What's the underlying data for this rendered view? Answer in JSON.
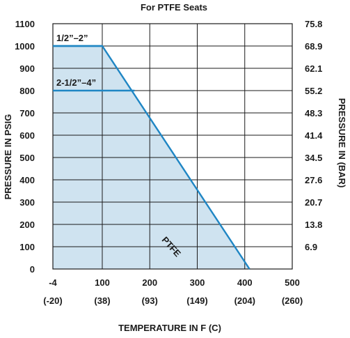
{
  "chart_data": {
    "type": "area",
    "title": "For PTFE Seats",
    "xlabel": "TEMPERATURE IN F (C)",
    "ylabel": "PRESSURE IN PSIG",
    "y2label": "PRESSURE IN (BAR)",
    "xlim": [
      -4,
      500
    ],
    "ylim": [
      0,
      1100
    ],
    "x_ticks": [
      {
        "value": -4,
        "label": "-4",
        "sublabel": "(-20)"
      },
      {
        "value": 100,
        "label": "100",
        "sublabel": "(38)"
      },
      {
        "value": 200,
        "label": "200",
        "sublabel": "(93)"
      },
      {
        "value": 300,
        "label": "300",
        "sublabel": "(149)"
      },
      {
        "value": 400,
        "label": "400",
        "sublabel": "(204)"
      },
      {
        "value": 500,
        "label": "500",
        "sublabel": "(260)"
      }
    ],
    "y_ticks": [
      {
        "value": 0,
        "label": "0",
        "right": ""
      },
      {
        "value": 100,
        "label": "100",
        "right": "6.9"
      },
      {
        "value": 200,
        "label": "200",
        "right": "13.8"
      },
      {
        "value": 300,
        "label": "300",
        "right": "20.7"
      },
      {
        "value": 400,
        "label": "400",
        "right": "27.6"
      },
      {
        "value": 500,
        "label": "500",
        "right": "34.5"
      },
      {
        "value": 600,
        "label": "600",
        "right": "41.4"
      },
      {
        "value": 700,
        "label": "700",
        "right": "48.3"
      },
      {
        "value": 800,
        "label": "800",
        "right": "55.2"
      },
      {
        "value": 900,
        "label": "900",
        "right": "62.1"
      },
      {
        "value": 1000,
        "label": "1000",
        "right": "68.9"
      },
      {
        "value": 1100,
        "label": "1100",
        "right": "75.8"
      }
    ],
    "grid": true,
    "series": [
      {
        "name": "PTFE",
        "x": [
          -4,
          100,
          410
        ],
        "y": [
          1000,
          1000,
          0
        ]
      }
    ],
    "annotations": [
      {
        "text": "1/2”–2”",
        "x": -4,
        "y": 1000,
        "x_end": 100
      },
      {
        "text": "2-1/2”–4”",
        "x": -4,
        "y": 800,
        "x_end": 168
      }
    ],
    "colors": {
      "fill": "#cfe3f0",
      "line": "#1f86c4",
      "grid": "#1a1a1a"
    }
  }
}
